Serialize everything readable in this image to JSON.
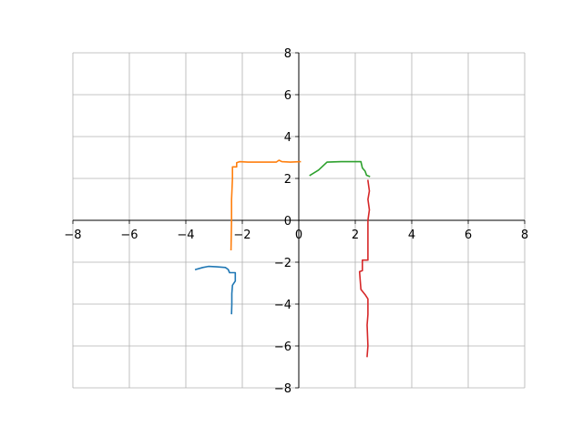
{
  "chart_data": {
    "type": "line",
    "title": "",
    "xlabel": "",
    "ylabel": "",
    "xlim": [
      -8,
      8
    ],
    "ylim": [
      -8,
      8
    ],
    "grid": true,
    "xticks": [
      "−8",
      "−6",
      "−4",
      "−2",
      "0",
      "2",
      "4",
      "6",
      "8"
    ],
    "yticks": [
      "−8",
      "−6",
      "−4",
      "−2",
      "0",
      "2",
      "4",
      "6",
      "8"
    ],
    "xtick_values": [
      -8,
      -6,
      -4,
      -2,
      0,
      2,
      4,
      6,
      8
    ],
    "ytick_values": [
      -8,
      -6,
      -4,
      -2,
      0,
      2,
      4,
      6,
      8
    ],
    "series": [
      {
        "color": "#1f77b4",
        "points": [
          [
            -3.65,
            -2.35
          ],
          [
            -3.4,
            -2.25
          ],
          [
            -3.2,
            -2.2
          ],
          [
            -2.9,
            -2.22
          ],
          [
            -2.6,
            -2.25
          ],
          [
            -2.5,
            -2.35
          ],
          [
            -2.45,
            -2.5
          ],
          [
            -2.25,
            -2.5
          ],
          [
            -2.25,
            -2.9
          ],
          [
            -2.35,
            -3.1
          ],
          [
            -2.37,
            -3.5
          ],
          [
            -2.37,
            -4.0
          ],
          [
            -2.38,
            -4.45
          ]
        ]
      },
      {
        "color": "#ff7f0e",
        "points": [
          [
            0.05,
            2.8
          ],
          [
            -0.3,
            2.78
          ],
          [
            -0.6,
            2.8
          ],
          [
            -0.7,
            2.87
          ],
          [
            -0.8,
            2.78
          ],
          [
            -1.3,
            2.78
          ],
          [
            -1.8,
            2.78
          ],
          [
            -2.1,
            2.8
          ],
          [
            -2.2,
            2.75
          ],
          [
            -2.2,
            2.55
          ],
          [
            -2.35,
            2.55
          ],
          [
            -2.35,
            2.0
          ],
          [
            -2.38,
            1.0
          ],
          [
            -2.38,
            0.0
          ],
          [
            -2.4,
            -1.4
          ]
        ]
      },
      {
        "color": "#2ca02c",
        "points": [
          [
            0.4,
            2.15
          ],
          [
            0.7,
            2.4
          ],
          [
            1.0,
            2.78
          ],
          [
            1.5,
            2.8
          ],
          [
            1.8,
            2.8
          ],
          [
            2.2,
            2.8
          ],
          [
            2.25,
            2.5
          ],
          [
            2.35,
            2.35
          ],
          [
            2.4,
            2.15
          ],
          [
            2.5,
            2.1
          ]
        ]
      },
      {
        "color": "#d62728",
        "points": [
          [
            2.45,
            1.9
          ],
          [
            2.5,
            1.4
          ],
          [
            2.45,
            1.0
          ],
          [
            2.5,
            0.5
          ],
          [
            2.45,
            0.0
          ],
          [
            2.45,
            -1.0
          ],
          [
            2.45,
            -1.9
          ],
          [
            2.25,
            -1.9
          ],
          [
            2.25,
            -2.4
          ],
          [
            2.15,
            -2.45
          ],
          [
            2.2,
            -3.3
          ],
          [
            2.35,
            -3.55
          ],
          [
            2.45,
            -3.75
          ],
          [
            2.45,
            -4.5
          ],
          [
            2.42,
            -5.0
          ],
          [
            2.45,
            -6.0
          ],
          [
            2.42,
            -6.5
          ]
        ]
      }
    ]
  }
}
